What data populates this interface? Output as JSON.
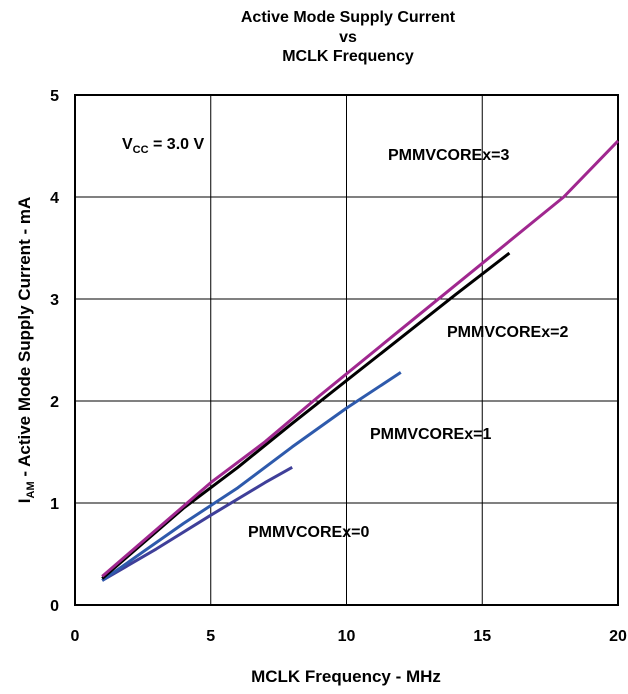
{
  "chart_data": {
    "type": "line",
    "title": [
      "Active Mode Supply Current",
      "vs",
      "MCLK Frequency"
    ],
    "xlabel": "MCLK Frequency - MHz",
    "ylabel": {
      "main": "I",
      "sub": "AM",
      "rest": " - Active Mode Supply Current - mA"
    },
    "xlim": [
      0,
      20
    ],
    "ylim": [
      0,
      5
    ],
    "xticks": [
      0,
      5,
      10,
      15,
      20
    ],
    "yticks": [
      0,
      1,
      2,
      3,
      4,
      5
    ],
    "grid": true,
    "annotation": {
      "main": "V",
      "sub": "CC",
      "rest": " = 3.0 V"
    },
    "series": [
      {
        "name": "PMMVCOREx=0",
        "color": "#3f3f99",
        "x": [
          1,
          3,
          5,
          7,
          8
        ],
        "y": [
          0.24,
          0.55,
          0.88,
          1.2,
          1.35
        ]
      },
      {
        "name": "PMMVCOREx=1",
        "color": "#2e5aac",
        "x": [
          1,
          4,
          6,
          8,
          10,
          12
        ],
        "y": [
          0.24,
          0.8,
          1.15,
          1.55,
          1.93,
          2.28
        ]
      },
      {
        "name": "PMMVCOREx=2",
        "color": "#000000",
        "x": [
          1,
          4,
          6,
          8,
          10,
          12,
          14,
          16
        ],
        "y": [
          0.26,
          0.95,
          1.35,
          1.78,
          2.2,
          2.62,
          3.04,
          3.45
        ]
      },
      {
        "name": "PMMVCOREx=3",
        "color": "#a0278f",
        "x": [
          1,
          5,
          7,
          9,
          12,
          15,
          18,
          20
        ],
        "y": [
          0.28,
          1.2,
          1.6,
          2.05,
          2.7,
          3.35,
          4.0,
          4.55
        ]
      }
    ],
    "series_label_positions": [
      "bottom-middle",
      "right-middle",
      "right-upper",
      "top-right"
    ]
  }
}
